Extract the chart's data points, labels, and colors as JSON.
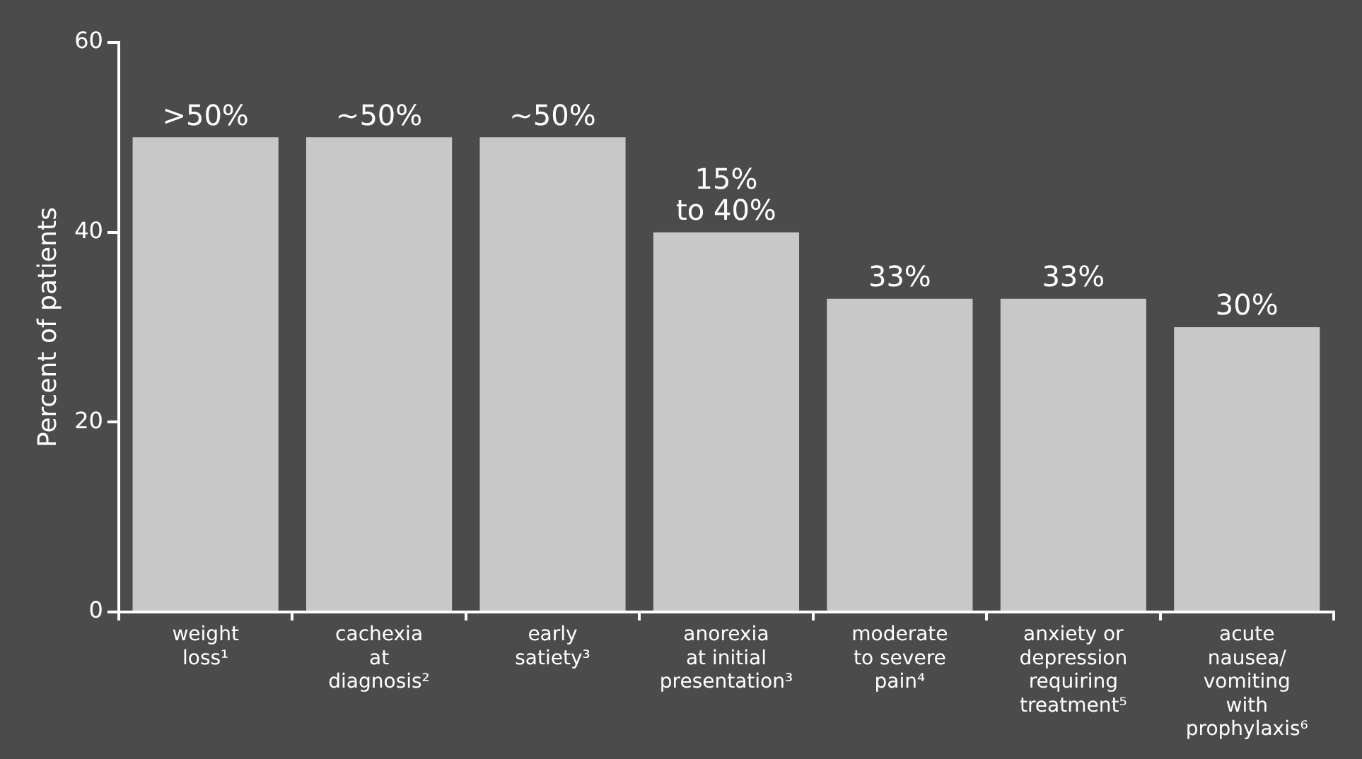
{
  "chart_data": {
    "type": "bar",
    "ylabel": "Percent of patients",
    "categories": [
      "weight\nloss¹",
      "cachexia\nat\ndiagnosis²",
      "early\nsatiety³",
      "anorexia\nat initial\npresentation³",
      "moderate\nto severe\npain⁴",
      "anxiety or\ndepression\nrequiring\ntreatment⁵",
      "acute\nnausea/\nvomiting\nwith\nprophylaxis⁶"
    ],
    "values": [
      50,
      50,
      50,
      40,
      33,
      33,
      30
    ],
    "value_labels": [
      ">50%",
      "~50%",
      "~50%",
      "15%\nto 40%",
      "33%",
      "33%",
      "30%"
    ],
    "color": "#c8c8c8",
    "ylim": [
      0,
      60
    ],
    "yticks": [
      0,
      20,
      40,
      60
    ],
    "grid": false,
    "legend": false
  }
}
